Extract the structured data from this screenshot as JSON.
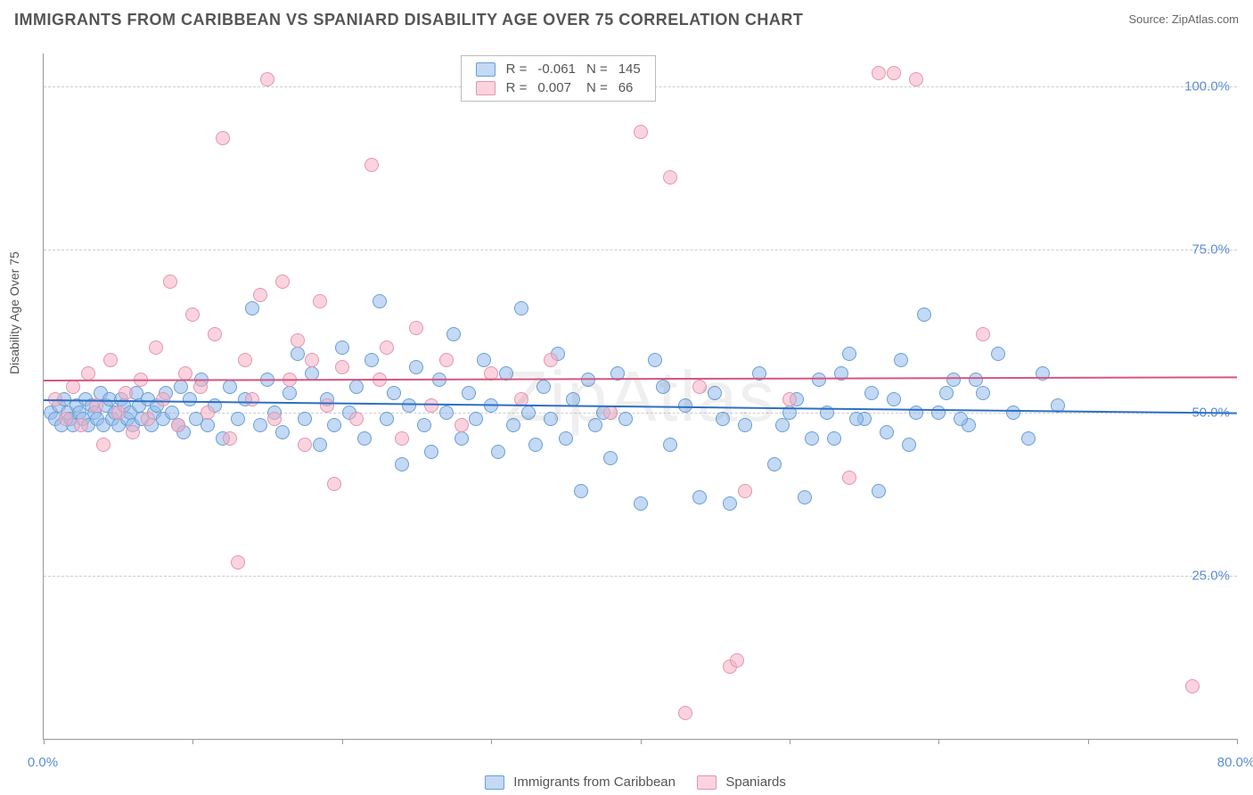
{
  "header": {
    "title": "IMMIGRANTS FROM CARIBBEAN VS SPANIARD DISABILITY AGE OVER 75 CORRELATION CHART",
    "source": "Source: ZipAtlas.com"
  },
  "y_axis_label": "Disability Age Over 75",
  "watermark": "ZipAtlas",
  "chart": {
    "type": "scatter",
    "xlim": [
      0,
      80
    ],
    "ylim": [
      0,
      105
    ],
    "x_tick_positions": [
      0,
      10,
      20,
      30,
      40,
      50,
      60,
      70,
      80
    ],
    "x_tick_labels": {
      "0": "0.0%",
      "80": "80.0%"
    },
    "y_ticks": [
      25,
      50,
      75,
      100
    ],
    "y_tick_labels": {
      "25": "25.0%",
      "50": "50.0%",
      "75": "75.0%",
      "100": "100.0%"
    },
    "background_color": "#ffffff",
    "grid_color": "#cccccc",
    "axis_color": "#999999",
    "marker_radius": 8,
    "marker_border_width": 1.2,
    "series": [
      {
        "name": "Immigrants from Caribbean",
        "fill_color": "rgba(145,185,235,0.55)",
        "stroke_color": "#6a9fd4",
        "trend_color": "#2f6fc2",
        "trend_y_start": 52.0,
        "trend_y_end": 50.0,
        "R": "-0.061",
        "N": "145",
        "points": [
          [
            0.5,
            50
          ],
          [
            0.8,
            49
          ],
          [
            1.0,
            51
          ],
          [
            1.2,
            48
          ],
          [
            1.4,
            52
          ],
          [
            1.6,
            50
          ],
          [
            1.8,
            49
          ],
          [
            2.0,
            48
          ],
          [
            2.2,
            51
          ],
          [
            2.4,
            50
          ],
          [
            2.6,
            49
          ],
          [
            2.8,
            52
          ],
          [
            3.0,
            48
          ],
          [
            3.2,
            51
          ],
          [
            3.4,
            50
          ],
          [
            3.6,
            49
          ],
          [
            3.8,
            53
          ],
          [
            4.0,
            48
          ],
          [
            4.2,
            51
          ],
          [
            4.4,
            52
          ],
          [
            4.6,
            49
          ],
          [
            4.8,
            50
          ],
          [
            5.0,
            48
          ],
          [
            5.2,
            52
          ],
          [
            5.4,
            51
          ],
          [
            5.6,
            49
          ],
          [
            5.8,
            50
          ],
          [
            6.0,
            48
          ],
          [
            6.2,
            53
          ],
          [
            6.4,
            51
          ],
          [
            6.6,
            49
          ],
          [
            7.0,
            52
          ],
          [
            7.2,
            48
          ],
          [
            7.4,
            50
          ],
          [
            7.6,
            51
          ],
          [
            8.0,
            49
          ],
          [
            8.2,
            53
          ],
          [
            8.6,
            50
          ],
          [
            9.0,
            48
          ],
          [
            9.2,
            54
          ],
          [
            9.4,
            47
          ],
          [
            9.8,
            52
          ],
          [
            10.2,
            49
          ],
          [
            10.6,
            55
          ],
          [
            11.0,
            48
          ],
          [
            11.5,
            51
          ],
          [
            12.0,
            46
          ],
          [
            12.5,
            54
          ],
          [
            13.0,
            49
          ],
          [
            13.5,
            52
          ],
          [
            14.0,
            66
          ],
          [
            14.5,
            48
          ],
          [
            15.0,
            55
          ],
          [
            15.5,
            50
          ],
          [
            16.0,
            47
          ],
          [
            16.5,
            53
          ],
          [
            17.0,
            59
          ],
          [
            17.5,
            49
          ],
          [
            18.0,
            56
          ],
          [
            18.5,
            45
          ],
          [
            19.0,
            52
          ],
          [
            19.5,
            48
          ],
          [
            20.0,
            60
          ],
          [
            20.5,
            50
          ],
          [
            21.0,
            54
          ],
          [
            21.5,
            46
          ],
          [
            22.0,
            58
          ],
          [
            22.5,
            67
          ],
          [
            23.0,
            49
          ],
          [
            23.5,
            53
          ],
          [
            24.0,
            42
          ],
          [
            24.5,
            51
          ],
          [
            25.0,
            57
          ],
          [
            25.5,
            48
          ],
          [
            26.0,
            44
          ],
          [
            26.5,
            55
          ],
          [
            27.0,
            50
          ],
          [
            27.5,
            62
          ],
          [
            28.0,
            46
          ],
          [
            28.5,
            53
          ],
          [
            29.0,
            49
          ],
          [
            29.5,
            58
          ],
          [
            30.0,
            51
          ],
          [
            30.5,
            44
          ],
          [
            31.0,
            56
          ],
          [
            31.5,
            48
          ],
          [
            32.0,
            66
          ],
          [
            32.5,
            50
          ],
          [
            33.0,
            45
          ],
          [
            33.5,
            54
          ],
          [
            34.0,
            49
          ],
          [
            34.5,
            59
          ],
          [
            35.0,
            46
          ],
          [
            35.5,
            52
          ],
          [
            36.0,
            38
          ],
          [
            36.5,
            55
          ],
          [
            37.0,
            48
          ],
          [
            37.5,
            50
          ],
          [
            38.0,
            43
          ],
          [
            38.5,
            56
          ],
          [
            39.0,
            49
          ],
          [
            40.0,
            36
          ],
          [
            41.0,
            58
          ],
          [
            42.0,
            45
          ],
          [
            43.0,
            51
          ],
          [
            44.0,
            37
          ],
          [
            45.0,
            53
          ],
          [
            46.0,
            36
          ],
          [
            47.0,
            48
          ],
          [
            48.0,
            56
          ],
          [
            49.0,
            42
          ],
          [
            50.0,
            50
          ],
          [
            51.0,
            37
          ],
          [
            52.0,
            55
          ],
          [
            53.0,
            46
          ],
          [
            54.0,
            59
          ],
          [
            55.0,
            49
          ],
          [
            56.0,
            38
          ],
          [
            57.0,
            52
          ],
          [
            58.0,
            45
          ],
          [
            59.0,
            65
          ],
          [
            60.0,
            50
          ],
          [
            61.0,
            55
          ],
          [
            62.0,
            48
          ],
          [
            63.0,
            53
          ],
          [
            64.0,
            59
          ],
          [
            65.0,
            50
          ],
          [
            66.0,
            46
          ],
          [
            67.0,
            56
          ],
          [
            68.0,
            51
          ],
          [
            60.5,
            53
          ],
          [
            61.5,
            49
          ],
          [
            62.5,
            55
          ],
          [
            49.5,
            48
          ],
          [
            50.5,
            52
          ],
          [
            51.5,
            46
          ],
          [
            52.5,
            50
          ],
          [
            53.5,
            56
          ],
          [
            54.5,
            49
          ],
          [
            55.5,
            53
          ],
          [
            56.5,
            47
          ],
          [
            57.5,
            58
          ],
          [
            58.5,
            50
          ],
          [
            41.5,
            54
          ],
          [
            45.5,
            49
          ]
        ]
      },
      {
        "name": "Spaniards",
        "fill_color": "rgba(245,175,195,0.55)",
        "stroke_color": "#e395af",
        "trend_color": "#d6567f",
        "trend_y_start": 55.0,
        "trend_y_end": 55.5,
        "R": "0.007",
        "N": "66",
        "points": [
          [
            0.8,
            52
          ],
          [
            1.5,
            49
          ],
          [
            2.0,
            54
          ],
          [
            2.5,
            48
          ],
          [
            3.0,
            56
          ],
          [
            3.5,
            51
          ],
          [
            4.0,
            45
          ],
          [
            4.5,
            58
          ],
          [
            5.0,
            50
          ],
          [
            5.5,
            53
          ],
          [
            6.0,
            47
          ],
          [
            6.5,
            55
          ],
          [
            7.0,
            49
          ],
          [
            7.5,
            60
          ],
          [
            8.0,
            52
          ],
          [
            8.5,
            70
          ],
          [
            9.0,
            48
          ],
          [
            9.5,
            56
          ],
          [
            10.0,
            65
          ],
          [
            10.5,
            54
          ],
          [
            11.0,
            50
          ],
          [
            11.5,
            62
          ],
          [
            12.0,
            92
          ],
          [
            12.5,
            46
          ],
          [
            13.0,
            27
          ],
          [
            13.5,
            58
          ],
          [
            14.0,
            52
          ],
          [
            14.5,
            68
          ],
          [
            15.0,
            101
          ],
          [
            15.5,
            49
          ],
          [
            16.0,
            70
          ],
          [
            16.5,
            55
          ],
          [
            17.0,
            61
          ],
          [
            17.5,
            45
          ],
          [
            18.0,
            58
          ],
          [
            18.5,
            67
          ],
          [
            19.0,
            51
          ],
          [
            19.5,
            39
          ],
          [
            20.0,
            57
          ],
          [
            21.0,
            49
          ],
          [
            22.0,
            88
          ],
          [
            22.5,
            55
          ],
          [
            23.0,
            60
          ],
          [
            24.0,
            46
          ],
          [
            25.0,
            63
          ],
          [
            26.0,
            51
          ],
          [
            27.0,
            58
          ],
          [
            28.0,
            48
          ],
          [
            30.0,
            56
          ],
          [
            32.0,
            52
          ],
          [
            34.0,
            58
          ],
          [
            38.0,
            50
          ],
          [
            40.0,
            93
          ],
          [
            42.0,
            86
          ],
          [
            44.0,
            54
          ],
          [
            46.0,
            11
          ],
          [
            46.5,
            12
          ],
          [
            43.0,
            4
          ],
          [
            47.0,
            38
          ],
          [
            50.0,
            52
          ],
          [
            54.0,
            40
          ],
          [
            56.0,
            102
          ],
          [
            57.0,
            102
          ],
          [
            58.5,
            101
          ],
          [
            63.0,
            62
          ],
          [
            77.0,
            8
          ]
        ]
      }
    ]
  },
  "legend_top": {
    "R_label": "R =",
    "N_label": "N ="
  },
  "legend_bottom": {
    "items": [
      "Immigrants from Caribbean",
      "Spaniards"
    ]
  }
}
